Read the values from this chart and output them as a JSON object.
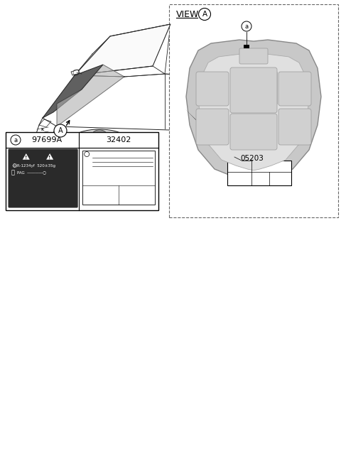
{
  "bg_color": "#ffffff",
  "label_05203": "05203",
  "part_num_left": "97699A",
  "part_num_right": "32402",
  "circle_A_label": "A",
  "circle_a_label": "a",
  "refrigerant_text": "R-1234yf  520±35g",
  "oil_text": "PAG",
  "dashed_color": "#666666",
  "hood_outer_color": "#c8c8c8",
  "hood_inner_color": "#e0e0e0",
  "hood_rib_color": "#d5d5d5",
  "dark_label_bg": "#3a3a3a",
  "car_line_color": "#222222",
  "hood_dark_color": "#555555"
}
